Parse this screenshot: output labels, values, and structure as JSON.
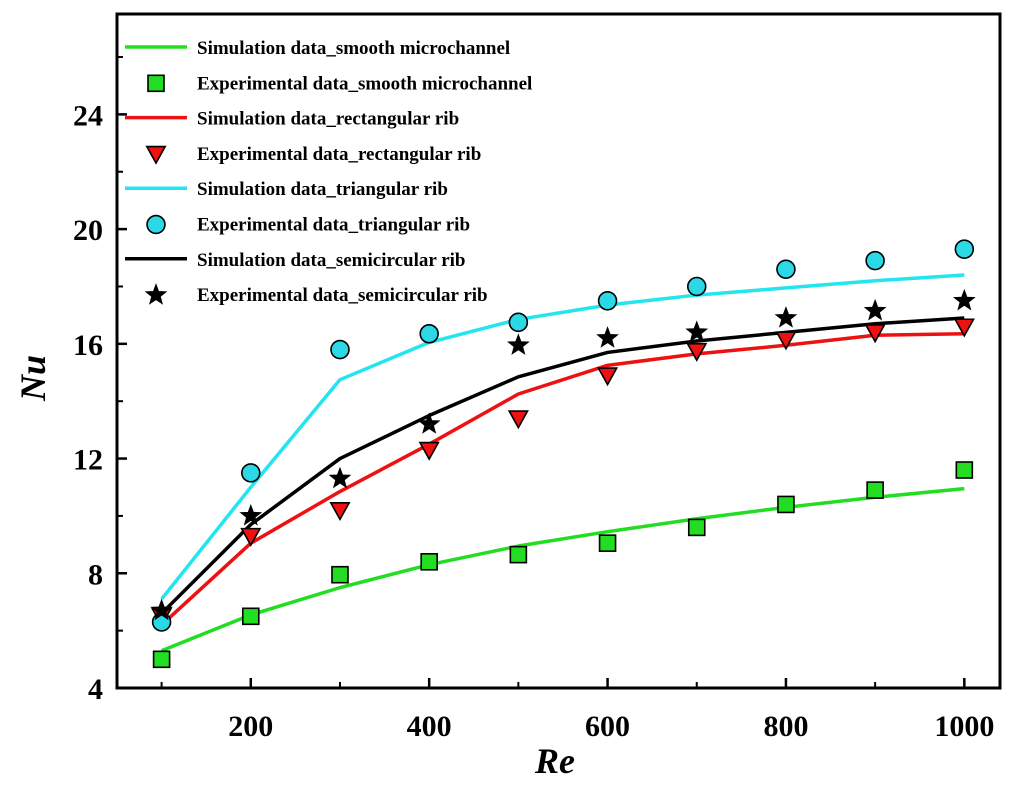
{
  "chart_data": {
    "type": "line",
    "title": "",
    "xlabel": "Re",
    "ylabel": "Nu",
    "xlim": [
      50,
      1040
    ],
    "ylim": [
      4,
      27.5
    ],
    "xticks": [
      200,
      400,
      600,
      800,
      1000
    ],
    "yticks": [
      4,
      8,
      12,
      16,
      20,
      24
    ],
    "x": [
      100,
      200,
      300,
      400,
      500,
      600,
      700,
      800,
      900,
      1000
    ],
    "legend_position": "top-left",
    "series": [
      {
        "name": "Simulation data_smooth microchannel",
        "kind": "line",
        "color": "#22dd22",
        "values": [
          5.3,
          6.55,
          7.5,
          8.3,
          8.95,
          9.45,
          9.9,
          10.3,
          10.65,
          10.95
        ]
      },
      {
        "name": "Experimental data_smooth microchannel",
        "kind": "marker",
        "marker": "square",
        "color": "#22dd22",
        "values": [
          5.0,
          6.5,
          7.95,
          8.4,
          8.65,
          9.05,
          9.6,
          10.4,
          10.9,
          11.6
        ]
      },
      {
        "name": "Simulation data_rectangular rib",
        "kind": "line",
        "color": "#ee1111",
        "values": [
          6.2,
          9.05,
          10.85,
          12.5,
          14.25,
          15.25,
          15.65,
          15.95,
          16.3,
          16.35
        ]
      },
      {
        "name": "Experimental data_rectangular rib",
        "kind": "marker",
        "marker": "triangle-down",
        "color": "#ee1111",
        "values": [
          6.5,
          9.3,
          10.2,
          12.3,
          13.4,
          14.9,
          15.75,
          16.15,
          16.4,
          16.6
        ]
      },
      {
        "name": "Simulation data_triangular rib",
        "kind": "line",
        "color": "#22e5f0",
        "values": [
          7.1,
          11.0,
          14.75,
          16.05,
          16.85,
          17.35,
          17.7,
          17.95,
          18.2,
          18.4
        ]
      },
      {
        "name": "Experimental data_triangular rib",
        "kind": "marker",
        "marker": "circle",
        "color": "#2ad8e6",
        "values": [
          6.3,
          11.5,
          15.8,
          16.35,
          16.75,
          17.5,
          18.0,
          18.6,
          18.9,
          19.3
        ]
      },
      {
        "name": "Simulation data_semicircular rib",
        "kind": "line",
        "color": "#000000",
        "values": [
          6.6,
          9.7,
          12.0,
          13.5,
          14.85,
          15.7,
          16.1,
          16.4,
          16.7,
          16.9
        ]
      },
      {
        "name": "Experimental data_semicircular rib",
        "kind": "marker",
        "marker": "star",
        "color": "#000000",
        "values": [
          6.7,
          10.0,
          11.3,
          13.2,
          15.95,
          16.2,
          16.4,
          16.9,
          17.15,
          17.5
        ]
      }
    ]
  }
}
